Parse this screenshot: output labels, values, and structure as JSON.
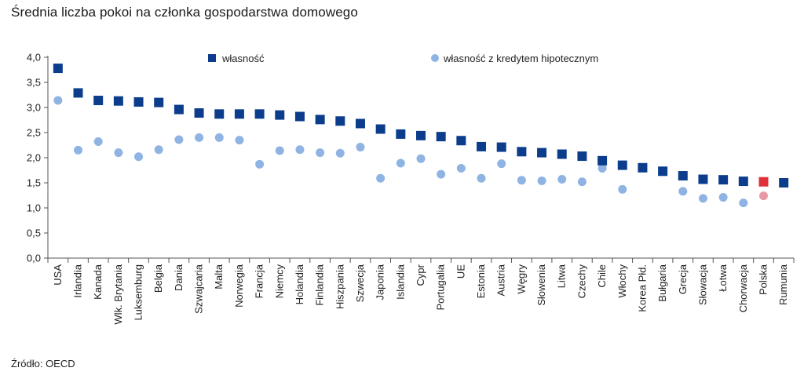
{
  "title": "Średnia liczba pokoi na członka gospodarstwa domowego",
  "source": "Źródło: OECD",
  "chart_data": {
    "type": "scatter",
    "categories": [
      "USA",
      "Irlandia",
      "Kanada",
      "Wlk. Brytania",
      "Luksemburg",
      "Belgia",
      "Dania",
      "Szwajcaria",
      "Malta",
      "Norwegia",
      "Francja",
      "Niemcy",
      "Holandia",
      "Finlandia",
      "Hiszpania",
      "Szwecja",
      "Japonia",
      "Islandia",
      "Cypr",
      "Portugalia",
      "UE",
      "Estonia",
      "Austria",
      "Węgry",
      "Słowenia",
      "Litwa",
      "Czechy",
      "Chile",
      "Włochy",
      "Korea Płd.",
      "Bułgaria",
      "Grecja",
      "Słowacja",
      "Łotwa",
      "Chorwacja",
      "Polska",
      "Rumunia"
    ],
    "series": [
      {
        "name": "własność",
        "marker": "square",
        "color": "#0b3d8c",
        "highlight_color": "#e0313a",
        "values": [
          3.78,
          3.29,
          3.14,
          3.13,
          3.11,
          3.1,
          2.96,
          2.89,
          2.87,
          2.87,
          2.87,
          2.85,
          2.82,
          2.76,
          2.73,
          2.68,
          2.57,
          2.47,
          2.44,
          2.42,
          2.34,
          2.22,
          2.21,
          2.12,
          2.1,
          2.07,
          2.03,
          1.94,
          1.85,
          1.8,
          1.73,
          1.64,
          1.57,
          1.56,
          1.53,
          1.52,
          1.5
        ]
      },
      {
        "name": "własność z kredytem hipotecznym",
        "marker": "circle",
        "color": "#8fb4e3",
        "highlight_color": "#e89aa3",
        "values": [
          3.14,
          2.15,
          2.32,
          2.1,
          2.02,
          2.16,
          2.36,
          2.4,
          2.4,
          2.35,
          1.87,
          2.14,
          2.16,
          2.1,
          2.09,
          2.21,
          1.59,
          1.89,
          1.98,
          1.67,
          1.79,
          1.59,
          1.88,
          1.55,
          1.54,
          1.57,
          1.52,
          1.79,
          1.37,
          null,
          null,
          1.33,
          1.19,
          1.21,
          1.1,
          1.24,
          null
        ]
      }
    ],
    "highlight_category": "Polska",
    "yticks": [
      "0,0",
      "0,5",
      "1,0",
      "1,5",
      "2,0",
      "2,5",
      "3,0",
      "3,5",
      "4,0"
    ],
    "ylim": [
      0,
      4
    ],
    "legend_placement": "top",
    "grid": false
  }
}
